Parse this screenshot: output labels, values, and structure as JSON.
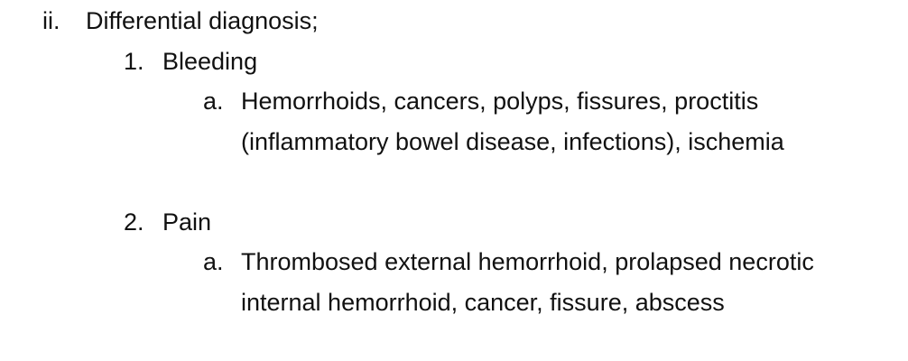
{
  "outline": {
    "level_ii": {
      "marker": "ii.",
      "text": "Differential diagnosis;"
    },
    "items": [
      {
        "marker": "1.",
        "title": "Bleeding",
        "sub": {
          "marker": "a.",
          "text": "Hemorrhoids, cancers, polyps, fissures, proctitis (inflammatory bowel disease, infections), ischemia"
        }
      },
      {
        "marker": "2.",
        "title": "Pain",
        "sub": {
          "marker": "a.",
          "text": "Thrombosed external hemorrhoid, prolapsed necrotic internal hemorrhoid, cancer, fissure, abscess"
        }
      }
    ]
  }
}
